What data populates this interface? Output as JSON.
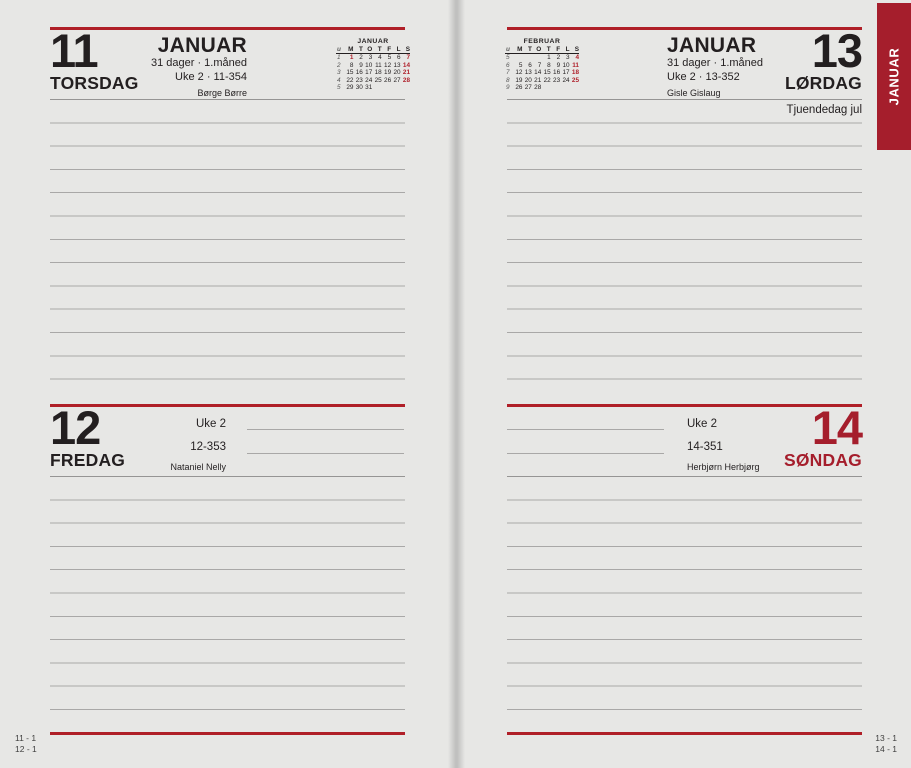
{
  "tab": {
    "label": "JANUAR"
  },
  "pages": {
    "left": {
      "top": {
        "day_number": "11",
        "day_name": "TORSDAG",
        "month_title": "JANUAR",
        "line1": "31 dager · 1.måned",
        "line2": "Uke 2 · 11-354",
        "name_day": "Børge Børre",
        "mini_calendar": "januar"
      },
      "bottom": {
        "day_number": "12",
        "day_name": "FREDAG",
        "week_label": "Uke 2",
        "day_code": "12-353",
        "name_day": "Nataniel Nelly"
      },
      "footer_lines": [
        "11 - 1",
        "12 - 1"
      ]
    },
    "right": {
      "top": {
        "day_number": "13",
        "day_name": "LØRDAG",
        "month_title": "JANUAR",
        "line1": "31 dager · 1.måned",
        "line2": "Uke 2 · 13-352",
        "name_day": "Gisle Gislaug",
        "holiday": "Tjuendedag jul",
        "mini_calendar": "februar"
      },
      "bottom": {
        "day_number": "14",
        "day_name": "SØNDAG",
        "week_label": "Uke 2",
        "day_code": "14-351",
        "name_day": "Herbjørn Herbjørg"
      },
      "footer_lines": [
        "13 - 1",
        "14 - 1"
      ]
    }
  },
  "mini_calendars": {
    "januar": {
      "title": "JANUAR",
      "headers": [
        "u",
        "M",
        "T",
        "O",
        "T",
        "F",
        "L",
        "S"
      ],
      "weeks": [
        {
          "num": "1",
          "days": [
            "1",
            "2",
            "3",
            "4",
            "5",
            "6",
            "7"
          ],
          "red": [
            0,
            6
          ]
        },
        {
          "num": "2",
          "days": [
            "8",
            "9",
            "10",
            "11",
            "12",
            "13",
            "14"
          ],
          "red": [
            6
          ]
        },
        {
          "num": "3",
          "days": [
            "15",
            "16",
            "17",
            "18",
            "19",
            "20",
            "21"
          ],
          "red": [
            6
          ]
        },
        {
          "num": "4",
          "days": [
            "22",
            "23",
            "24",
            "25",
            "26",
            "27",
            "28"
          ],
          "red": [
            6
          ]
        },
        {
          "num": "5",
          "days": [
            "29",
            "30",
            "31",
            "",
            "",
            "",
            ""
          ],
          "red": []
        }
      ]
    },
    "februar": {
      "title": "FEBRUAR",
      "headers": [
        "u",
        "M",
        "T",
        "O",
        "T",
        "F",
        "L",
        "S"
      ],
      "weeks": [
        {
          "num": "5",
          "days": [
            "",
            "",
            "",
            "1",
            "2",
            "3",
            "4"
          ],
          "red": [
            6
          ]
        },
        {
          "num": "6",
          "days": [
            "5",
            "6",
            "7",
            "8",
            "9",
            "10",
            "11"
          ],
          "red": [
            6
          ]
        },
        {
          "num": "7",
          "days": [
            "12",
            "13",
            "14",
            "15",
            "16",
            "17",
            "18"
          ],
          "red": [
            6
          ]
        },
        {
          "num": "8",
          "days": [
            "19",
            "20",
            "21",
            "22",
            "23",
            "24",
            "25"
          ],
          "red": [
            6
          ]
        },
        {
          "num": "9",
          "days": [
            "26",
            "27",
            "28",
            "",
            "",
            "",
            ""
          ],
          "red": []
        }
      ]
    }
  }
}
